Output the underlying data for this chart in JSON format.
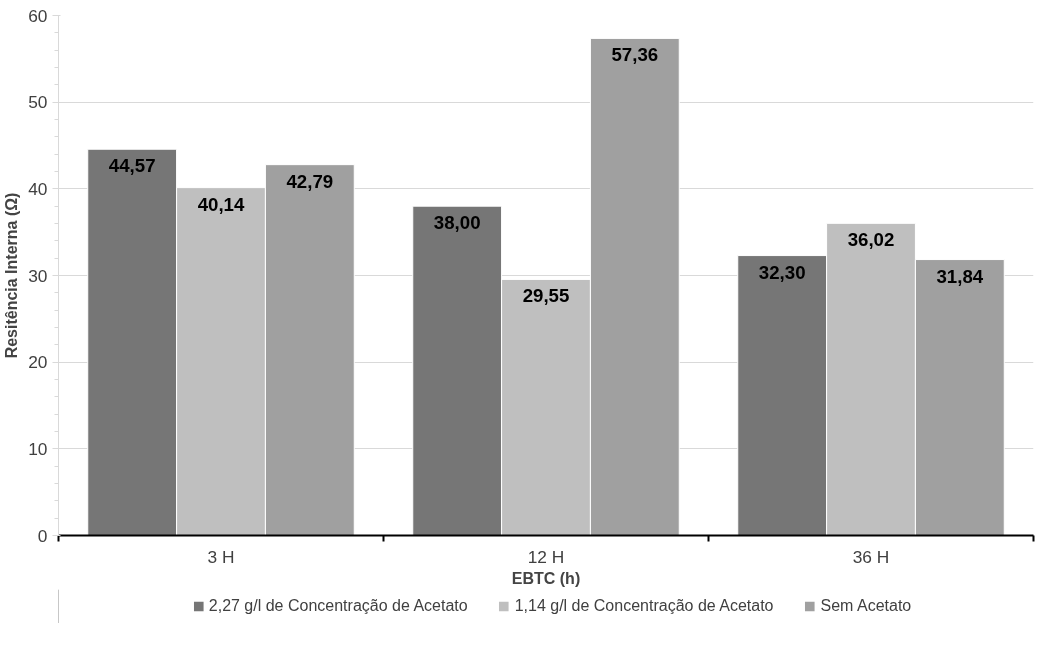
{
  "chart_data": {
    "type": "bar",
    "xlabel": "EBTC (h)",
    "ylabel": "Resitência Interna (Ω)",
    "categories": [
      "3 H",
      "12 H",
      "36 H"
    ],
    "series": [
      {
        "name": "2,27 g/l de Concentração de Acetato",
        "color": "#767676",
        "values": [
          44.57,
          38.0,
          32.3
        ],
        "value_labels": [
          "44,57",
          "38,00",
          "32,30"
        ]
      },
      {
        "name": "1,14 g/l de Concentração de Acetato",
        "color": "#bfbfbf",
        "values": [
          40.14,
          29.55,
          36.02
        ],
        "value_labels": [
          "40,14",
          "29,55",
          "36,02"
        ]
      },
      {
        "name": "Sem Acetato",
        "color": "#a0a0a0",
        "values": [
          42.79,
          57.36,
          31.84
        ],
        "value_labels": [
          "42,79",
          "57,36",
          "31,84"
        ]
      }
    ],
    "ylim": [
      0,
      60
    ],
    "yticks": [
      0,
      10,
      20,
      30,
      40,
      50,
      60
    ],
    "grid": "y",
    "legend": "bottom"
  }
}
